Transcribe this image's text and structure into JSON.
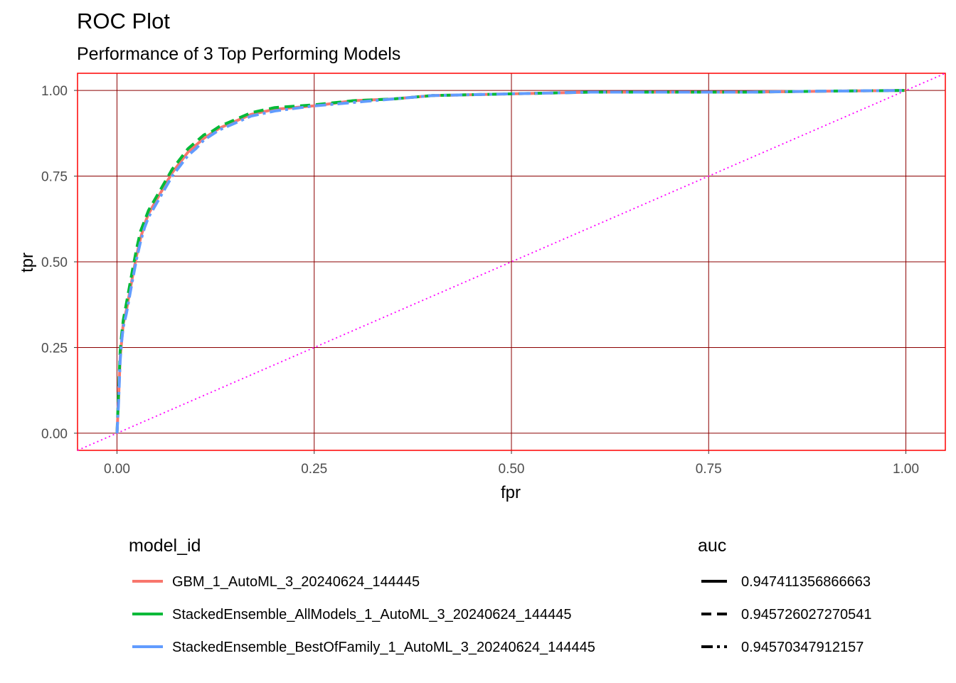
{
  "chart_data": {
    "type": "line",
    "title": "ROC Plot",
    "subtitle": "Performance of 3 Top Performing Models",
    "xlabel": "fpr",
    "ylabel": "tpr",
    "xlim": [
      -0.05,
      1.05
    ],
    "ylim": [
      -0.05,
      1.05
    ],
    "x_ticks": [
      "0.00",
      "0.25",
      "0.50",
      "0.75",
      "1.00"
    ],
    "y_ticks": [
      "0.00",
      "0.25",
      "0.50",
      "0.75",
      "1.00"
    ],
    "grid": true,
    "reference_line": {
      "x": [
        -0.05,
        1.05
      ],
      "y": [
        -0.05,
        1.05
      ],
      "color": "#ff00ff",
      "style": "dotted"
    },
    "legend_position": "bottom",
    "legends": [
      {
        "title": "model_id",
        "entries": [
          {
            "label": "GBM_1_AutoML_3_20240624_144445",
            "color": "#f8766d"
          },
          {
            "label": "StackedEnsemble_AllModels_1_AutoML_3_20240624_144445",
            "color": "#00ba38"
          },
          {
            "label": "StackedEnsemble_BestOfFamily_1_AutoML_3_20240624_144445",
            "color": "#619cff"
          }
        ]
      },
      {
        "title": "auc",
        "entries": [
          {
            "label": "0.947411356866663",
            "linetype": "solid"
          },
          {
            "label": "0.945726027270541",
            "linetype": "dashed"
          },
          {
            "label": "0.94570347912157",
            "linetype": "dotdash"
          }
        ]
      }
    ],
    "series": [
      {
        "name": "GBM_1_AutoML_3_20240624_144445",
        "color": "#f8766d",
        "linetype": "solid",
        "x": [
          0,
          0.002,
          0.004,
          0.006,
          0.008,
          0.012,
          0.016,
          0.02,
          0.025,
          0.03,
          0.035,
          0.04,
          0.05,
          0.06,
          0.07,
          0.08,
          0.09,
          0.1,
          0.11,
          0.12,
          0.13,
          0.15,
          0.17,
          0.2,
          0.25,
          0.3,
          0.35,
          0.4,
          0.5,
          0.6,
          0.7,
          0.8,
          0.9,
          1
        ],
        "y": [
          0,
          0.1,
          0.22,
          0.27,
          0.32,
          0.36,
          0.41,
          0.46,
          0.52,
          0.57,
          0.61,
          0.64,
          0.68,
          0.72,
          0.76,
          0.79,
          0.82,
          0.84,
          0.86,
          0.875,
          0.89,
          0.91,
          0.93,
          0.945,
          0.955,
          0.97,
          0.975,
          0.985,
          0.99,
          0.995,
          0.995,
          0.995,
          0.998,
          1
        ]
      },
      {
        "name": "StackedEnsemble_AllModels_1_AutoML_3_20240624_144445",
        "color": "#00ba38",
        "linetype": "dashed",
        "x": [
          0,
          0.002,
          0.004,
          0.006,
          0.008,
          0.012,
          0.016,
          0.02,
          0.025,
          0.03,
          0.035,
          0.04,
          0.05,
          0.06,
          0.07,
          0.08,
          0.09,
          0.1,
          0.11,
          0.12,
          0.13,
          0.15,
          0.17,
          0.2,
          0.25,
          0.3,
          0.35,
          0.4,
          0.5,
          0.6,
          0.7,
          0.8,
          0.9,
          1
        ],
        "y": [
          0,
          0.12,
          0.24,
          0.29,
          0.33,
          0.38,
          0.43,
          0.48,
          0.54,
          0.59,
          0.62,
          0.65,
          0.69,
          0.73,
          0.77,
          0.8,
          0.83,
          0.85,
          0.87,
          0.88,
          0.895,
          0.915,
          0.935,
          0.95,
          0.958,
          0.97,
          0.975,
          0.985,
          0.99,
          0.995,
          0.995,
          0.995,
          0.998,
          1
        ]
      },
      {
        "name": "StackedEnsemble_BestOfFamily_1_AutoML_3_20240624_144445",
        "color": "#619cff",
        "linetype": "dotdash",
        "x": [
          0,
          0.002,
          0.004,
          0.006,
          0.008,
          0.012,
          0.016,
          0.02,
          0.025,
          0.03,
          0.035,
          0.04,
          0.05,
          0.06,
          0.07,
          0.08,
          0.09,
          0.1,
          0.11,
          0.12,
          0.13,
          0.15,
          0.17,
          0.2,
          0.25,
          0.3,
          0.35,
          0.4,
          0.5,
          0.6,
          0.7,
          0.8,
          0.9,
          1
        ],
        "y": [
          0,
          0.09,
          0.21,
          0.27,
          0.31,
          0.35,
          0.4,
          0.45,
          0.51,
          0.56,
          0.6,
          0.63,
          0.67,
          0.71,
          0.75,
          0.78,
          0.81,
          0.83,
          0.855,
          0.87,
          0.885,
          0.905,
          0.925,
          0.94,
          0.955,
          0.965,
          0.975,
          0.985,
          0.99,
          0.995,
          0.995,
          0.995,
          0.998,
          1
        ]
      }
    ]
  }
}
